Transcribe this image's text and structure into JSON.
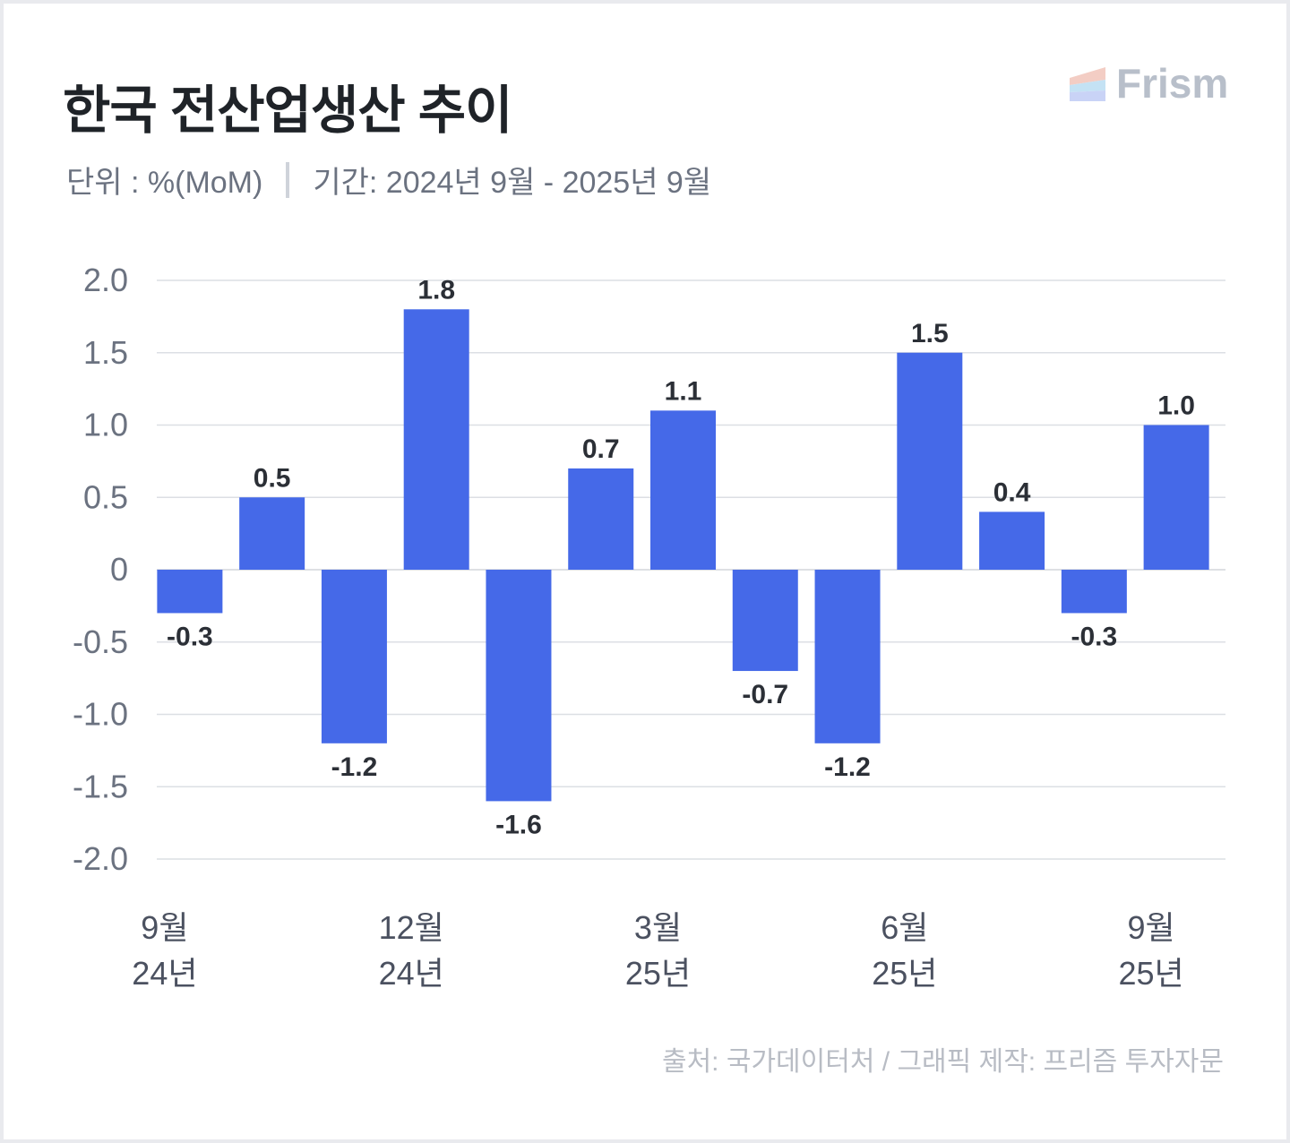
{
  "header": {
    "title": "한국 전산업생산 추이",
    "unit": "단위 : %(MoM)",
    "period": "기간: 2024년 9월 - 2025년 9월",
    "logo": "Frism"
  },
  "footer": {
    "source": "출처: 국가데이터처 / 그래픽 제작: 프리즘 투자자문"
  },
  "colors": {
    "bar": "#4569e8",
    "grid": "#dcdfe4",
    "axis_text": "#6b7280"
  },
  "chart_data": {
    "type": "bar",
    "title": "한국 전산업생산 추이",
    "ylabel": "%(MoM)",
    "ylim": [
      -2.0,
      2.0
    ],
    "yticks": [
      2.0,
      1.5,
      1.0,
      0.5,
      0,
      -0.5,
      -1.0,
      -1.5,
      -2.0
    ],
    "ytick_labels": [
      "2.0",
      "1.5",
      "1.0",
      "0.5",
      "0",
      "-0.5",
      "-1.0",
      "-1.5",
      "-2.0"
    ],
    "categories": [
      "2024-09",
      "2024-10",
      "2024-11",
      "2024-12",
      "2025-01",
      "2025-02",
      "2025-03",
      "2025-04",
      "2025-05",
      "2025-06",
      "2025-07",
      "2025-08",
      "2025-09"
    ],
    "values": [
      -0.3,
      0.5,
      -1.2,
      1.8,
      -1.6,
      0.7,
      1.1,
      -0.7,
      -1.2,
      1.5,
      0.4,
      -0.3,
      1.0
    ],
    "value_labels": [
      "-0.3",
      "0.5",
      "-1.2",
      "1.8",
      "-1.6",
      "0.7",
      "1.1",
      "-0.7",
      "-1.2",
      "1.5",
      "0.4",
      "-0.3",
      "1.0"
    ],
    "xtick_labels": [
      {
        "index": 0,
        "month": "9월",
        "year": "24년"
      },
      {
        "index": 3,
        "month": "12월",
        "year": "24년"
      },
      {
        "index": 6,
        "month": "3월",
        "year": "25년"
      },
      {
        "index": 9,
        "month": "6월",
        "year": "25년"
      },
      {
        "index": 12,
        "month": "9월",
        "year": "25년"
      }
    ],
    "grid": true,
    "legend": "none"
  }
}
